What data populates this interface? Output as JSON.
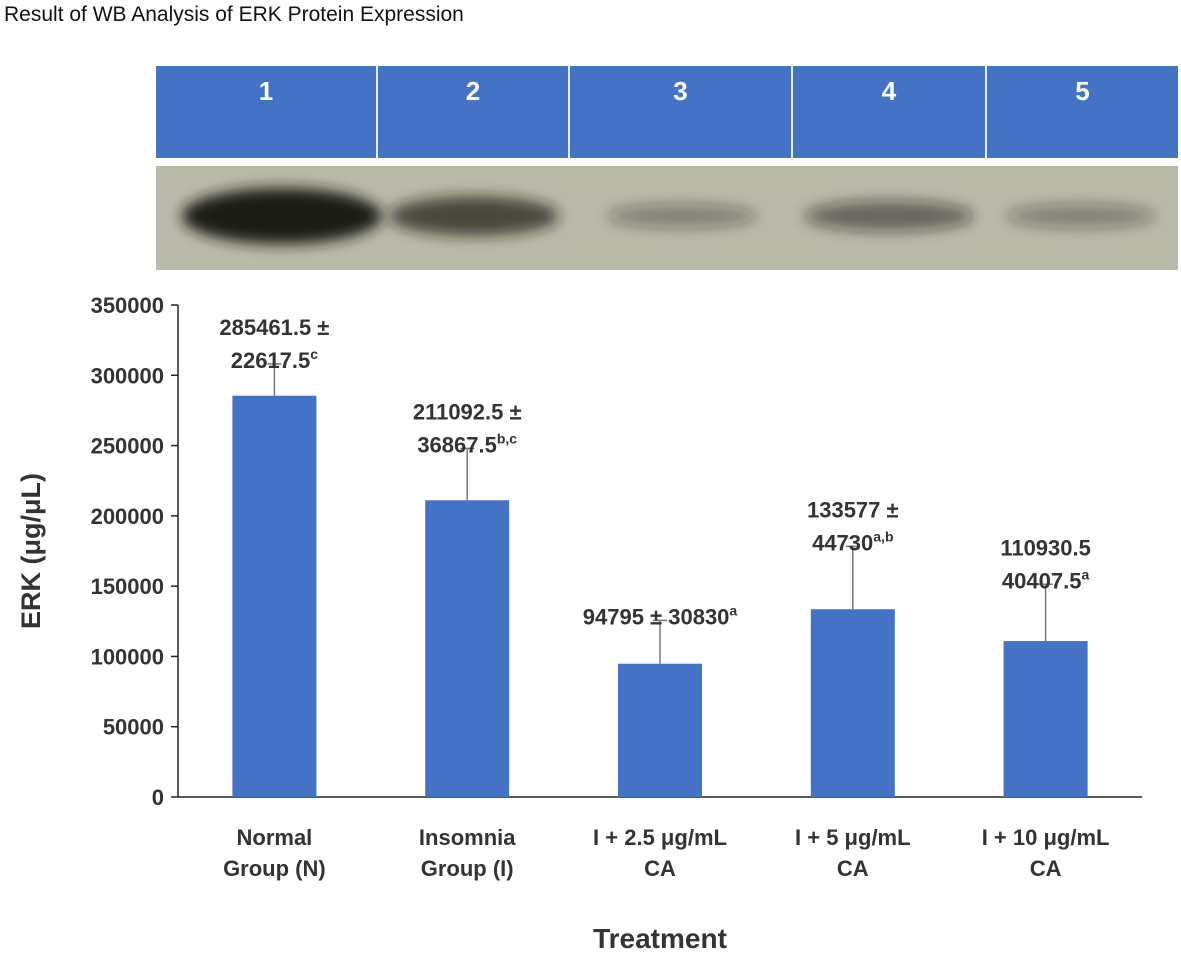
{
  "figure_title": "Result of WB Analysis of ERK Protein Expression",
  "lane_labels": [
    "1",
    "2",
    "3",
    "4",
    "5"
  ],
  "colors": {
    "bar": "#4472c4",
    "lane_header": "#4472c4",
    "blot_background": "#babaa9",
    "band": "#1a1a14"
  },
  "blot": {
    "band_intensity": [
      1.0,
      0.55,
      0.12,
      0.3,
      0.12
    ]
  },
  "chart_data": {
    "type": "bar",
    "xlabel": "Treatment",
    "ylabel": "ERK (μg/μL)",
    "ylim": [
      0,
      350000
    ],
    "yticks": [
      0,
      50000,
      100000,
      150000,
      200000,
      250000,
      300000,
      350000
    ],
    "categories": [
      [
        "Normal",
        "Group (N)"
      ],
      [
        "Insomnia",
        "Group (I)"
      ],
      [
        "I + 2.5 μg/mL",
        "CA"
      ],
      [
        "I + 5 μg/mL",
        "CA"
      ],
      [
        "I + 10 μg/mL",
        "CA"
      ]
    ],
    "values": [
      285461.5,
      211092.5,
      94795,
      133577,
      110930.5
    ],
    "errors": [
      22617.5,
      36867.5,
      30830,
      44730,
      40407.5
    ],
    "data_labels": [
      {
        "lines": [
          {
            "text": "285461.5 ±",
            "sup": ""
          },
          {
            "text": "22617.5",
            "sup": "c"
          }
        ]
      },
      {
        "lines": [
          {
            "text": "211092.5 ±",
            "sup": ""
          },
          {
            "text": "36867.5",
            "sup": "b,c"
          }
        ]
      },
      {
        "lines": [
          {
            "text": "94795 ± 30830",
            "sup": "a"
          }
        ]
      },
      {
        "lines": [
          {
            "text": "133577 ±",
            "sup": ""
          },
          {
            "text": "44730",
            "sup": "a,b"
          }
        ]
      },
      {
        "lines": [
          {
            "text": "110930.5",
            "sup": ""
          },
          {
            "text": "40407.5",
            "sup": "a"
          }
        ]
      }
    ],
    "grid": false,
    "legend": "none"
  }
}
